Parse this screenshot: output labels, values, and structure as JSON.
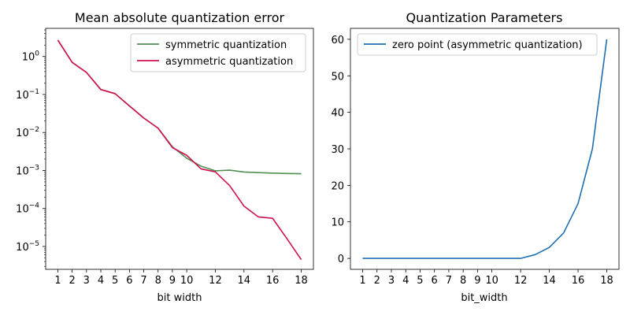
{
  "chart_data": [
    {
      "type": "line",
      "title": "Mean absolute quantization error",
      "xlabel": "bit width",
      "ylabel": "",
      "yscale": "log",
      "ylim": [
        2.5e-06,
        5.5
      ],
      "xlim": [
        0.15,
        18.85
      ],
      "xticks": [
        1,
        2,
        3,
        4,
        5,
        6,
        7,
        8,
        9,
        10,
        12,
        14,
        16,
        18
      ],
      "yticks": [
        {
          "value": 1e-05,
          "base": "10",
          "exp": "−5"
        },
        {
          "value": 0.0001,
          "base": "10",
          "exp": "−4"
        },
        {
          "value": 0.001,
          "base": "10",
          "exp": "−3"
        },
        {
          "value": 0.01,
          "base": "10",
          "exp": "−2"
        },
        {
          "value": 0.1,
          "base": "10",
          "exp": "−1"
        },
        {
          "value": 1,
          "base": "10",
          "exp": "0"
        }
      ],
      "legend_position": "upper right",
      "grid": false,
      "x": [
        1,
        2,
        3,
        4,
        5,
        6,
        7,
        8,
        9,
        10,
        11,
        12,
        13,
        14,
        15,
        16,
        17,
        18
      ],
      "series": [
        {
          "name": "symmetric quantization",
          "color": "#4f8f4f",
          "values": [
            2.7,
            0.7,
            0.38,
            0.135,
            0.105,
            0.05,
            0.024,
            0.013,
            0.0042,
            0.0021,
            0.0013,
            0.00098,
            0.00102,
            0.00091,
            0.00088,
            0.00085,
            0.00083,
            0.00082
          ]
        },
        {
          "name": "asymmetric quantization",
          "color": "#d0104c",
          "values": [
            2.7,
            0.7,
            0.38,
            0.135,
            0.105,
            0.05,
            0.024,
            0.013,
            0.004,
            0.0025,
            0.0011,
            0.00092,
            0.0004,
            0.000115,
            6e-05,
            5.5e-05,
            1.6e-05,
            4.5e-06
          ]
        }
      ]
    },
    {
      "type": "line",
      "title": "Quantization Parameters",
      "xlabel": "bit_width",
      "ylabel": "",
      "yscale": "linear",
      "ylim": [
        -3,
        63
      ],
      "xlim": [
        0.15,
        18.85
      ],
      "xticks": [
        1,
        2,
        3,
        4,
        5,
        6,
        7,
        8,
        9,
        10,
        12,
        14,
        16,
        18
      ],
      "yticks": [
        0,
        10,
        20,
        30,
        40,
        50,
        60
      ],
      "legend_position": "upper left",
      "grid": false,
      "x": [
        1,
        2,
        3,
        4,
        5,
        6,
        7,
        8,
        9,
        10,
        11,
        12,
        13,
        14,
        15,
        16,
        17,
        18
      ],
      "series": [
        {
          "name": "zero point (asymmetric quantization)",
          "color": "#1f6fb0",
          "values": [
            0,
            0,
            0,
            0,
            0,
            0,
            0,
            0,
            0,
            0,
            0,
            0,
            1,
            3,
            7,
            15,
            30,
            60
          ]
        }
      ]
    }
  ]
}
